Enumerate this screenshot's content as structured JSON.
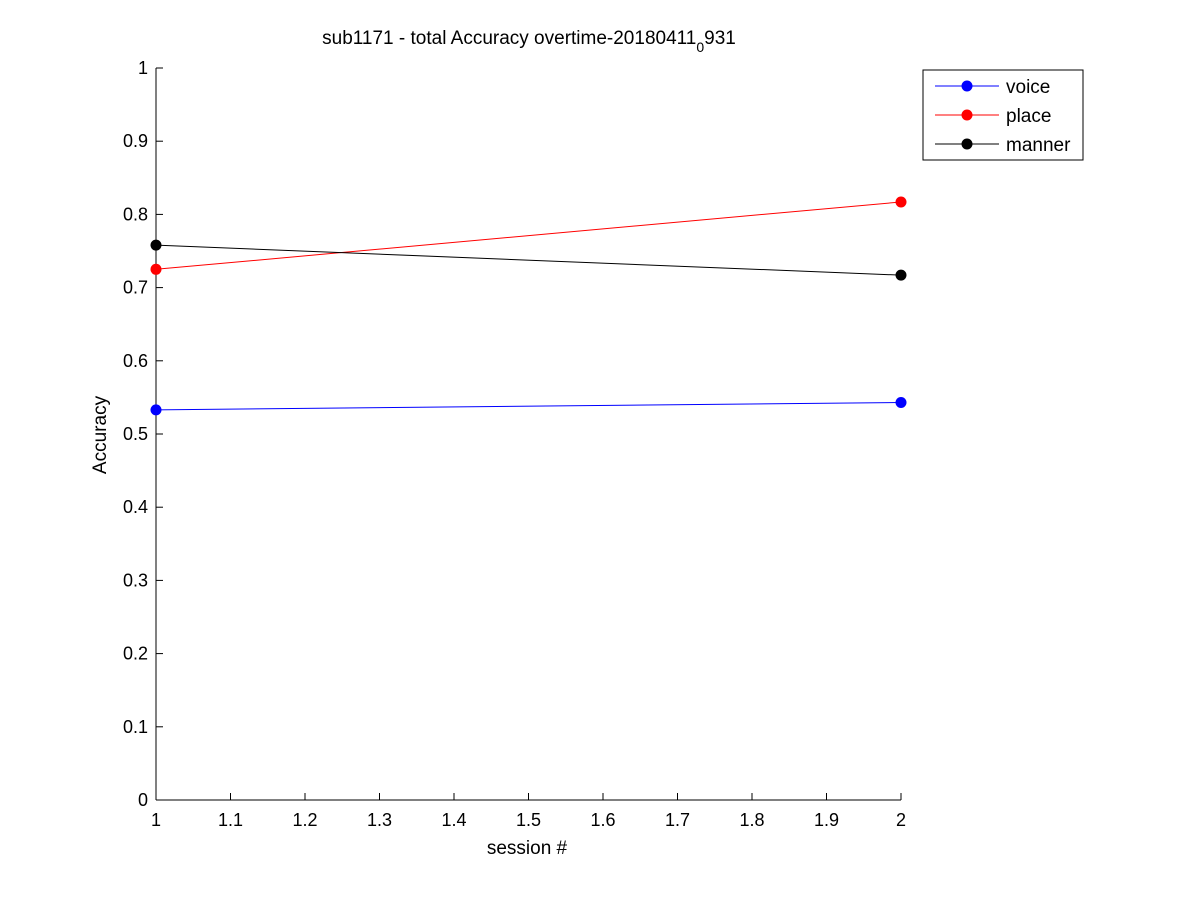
{
  "chart_data": {
    "type": "line",
    "title": "sub1171 - total Accuracy overtime-20180411",
    "title_subscript": "0",
    "title_suffix": "931",
    "xlabel": "session #",
    "ylabel": "Accuracy",
    "xlim": [
      1,
      2
    ],
    "ylim": [
      0,
      1
    ],
    "x": [
      1,
      2
    ],
    "xticks": [
      "1",
      "1.1",
      "1.2",
      "1.3",
      "1.4",
      "1.5",
      "1.6",
      "1.7",
      "1.8",
      "1.9",
      "2"
    ],
    "yticks": [
      "0",
      "0.1",
      "0.2",
      "0.3",
      "0.4",
      "0.5",
      "0.6",
      "0.7",
      "0.8",
      "0.9",
      "1"
    ],
    "grid": false,
    "legend_position": "top-right (outside plot)",
    "series": [
      {
        "name": "voice",
        "values": [
          0.533,
          0.543
        ],
        "color": "#0000ff"
      },
      {
        "name": "place",
        "values": [
          0.725,
          0.817
        ],
        "color": "#ff0000"
      },
      {
        "name": "manner",
        "values": [
          0.758,
          0.717
        ],
        "color": "#000000"
      }
    ]
  }
}
